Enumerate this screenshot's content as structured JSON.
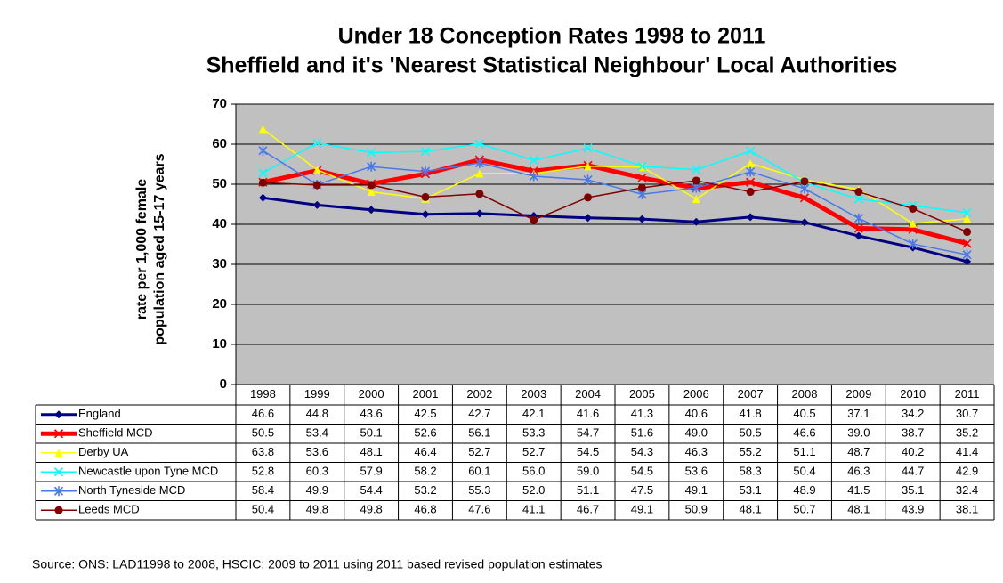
{
  "chart_data": {
    "type": "line",
    "title": "Under 18 Conception Rates 1998 to 2011",
    "subtitle": "Sheffield and it's 'Nearest Statistical Neighbour' Local Authorities",
    "y_label": [
      "rate per 1,000 female",
      "population  aged 15-17 years"
    ],
    "categories": [
      "1998",
      "1999",
      "2000",
      "2001",
      "2002",
      "2003",
      "2004",
      "2005",
      "2006",
      "2007",
      "2008",
      "2009",
      "2010",
      "2011"
    ],
    "ylim": [
      0,
      70
    ],
    "yticks": [
      0,
      10,
      20,
      30,
      40,
      50,
      60,
      70
    ],
    "grid": true,
    "plot_background": "#c0c0c0",
    "series": [
      {
        "name": "England",
        "color": "#000080",
        "marker": "diamond",
        "values": [
          46.6,
          44.8,
          43.6,
          42.5,
          42.7,
          42.1,
          41.6,
          41.3,
          40.6,
          41.8,
          40.5,
          37.1,
          34.2,
          30.7
        ],
        "value_labels": [
          "46.6",
          "44.8",
          "43.6",
          "42.5",
          "42.7",
          "42.1",
          "41.6",
          "41.3",
          "40.6",
          "41.8",
          "40.5",
          "37.1",
          "34.2",
          "30.7"
        ]
      },
      {
        "name": "Sheffield MCD",
        "color": "#ff0000",
        "marker": "x",
        "values": [
          50.5,
          53.4,
          50.1,
          52.6,
          56.1,
          53.3,
          54.7,
          51.6,
          49.0,
          50.5,
          46.6,
          39.0,
          38.7,
          35.2
        ],
        "value_labels": [
          "50.5",
          "53.4",
          "50.1",
          "52.6",
          "56.1",
          "53.3",
          "54.7",
          "51.6",
          "49.0",
          "50.5",
          "46.6",
          "39.0",
          "38.7",
          "35.2"
        ]
      },
      {
        "name": "Derby UA",
        "color": "#ffff00",
        "marker": "triangle",
        "values": [
          63.8,
          53.6,
          48.1,
          46.4,
          52.7,
          52.7,
          54.5,
          54.3,
          46.3,
          55.2,
          51.1,
          48.7,
          40.2,
          41.4
        ],
        "value_labels": [
          "63.8",
          "53.6",
          "48.1",
          "46.4",
          "52.7",
          "52.7",
          "54.5",
          "54.3",
          "46.3",
          "55.2",
          "51.1",
          "48.7",
          "40.2",
          "41.4"
        ]
      },
      {
        "name": "Newcastle upon Tyne MCD",
        "color": "#00ffff",
        "marker": "x",
        "values": [
          52.8,
          60.3,
          57.9,
          58.2,
          60.1,
          56.0,
          59.0,
          54.5,
          53.6,
          58.3,
          50.4,
          46.3,
          44.7,
          42.9
        ],
        "value_labels": [
          "52.8",
          "60.3",
          "57.9",
          "58.2",
          "60.1",
          "56.0",
          "59.0",
          "54.5",
          "53.6",
          "58.3",
          "50.4",
          "46.3",
          "44.7",
          "42.9"
        ]
      },
      {
        "name": "North Tyneside MCD",
        "color": "#4a78e8",
        "marker": "asterisk",
        "values": [
          58.4,
          49.9,
          54.4,
          53.2,
          55.3,
          52.0,
          51.1,
          47.5,
          49.1,
          53.1,
          48.9,
          41.5,
          35.1,
          32.4
        ],
        "value_labels": [
          "58.4",
          "49.9",
          "54.4",
          "53.2",
          "55.3",
          "52.0",
          "51.1",
          "47.5",
          "49.1",
          "53.1",
          "48.9",
          "41.5",
          "35.1",
          "32.4"
        ]
      },
      {
        "name": "Leeds MCD",
        "color": "#800000",
        "marker": "circle",
        "values": [
          50.4,
          49.8,
          49.8,
          46.8,
          47.6,
          41.1,
          46.7,
          49.1,
          50.9,
          48.1,
          50.7,
          48.1,
          43.9,
          38.1
        ],
        "value_labels": [
          "50.4",
          "49.8",
          "49.8",
          "46.8",
          "47.6",
          "41.1",
          "46.7",
          "49.1",
          "50.9",
          "48.1",
          "50.7",
          "48.1",
          "43.9",
          "38.1"
        ]
      }
    ],
    "source": "Source: ONS: LAD11998 to 2008, HSCIC: 2009 to 2011 using 2011 based revised population estimates"
  }
}
